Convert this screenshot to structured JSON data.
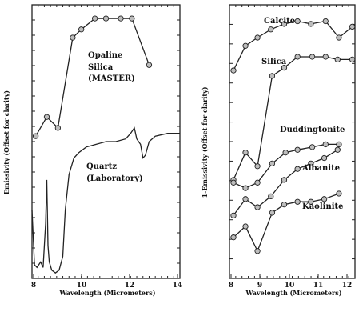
{
  "chart_data": [
    {
      "type": "line",
      "xlabel": "Wavelength (Micrometers)",
      "ylabel": "Emissivity (Offset for clarity)",
      "xlim": [
        8,
        14
      ],
      "xticks": [
        "8",
        "10",
        "12",
        "14"
      ],
      "ylim": [
        0,
        1
      ],
      "yticks_labeled": false,
      "grid": false,
      "series": [
        {
          "name": "Opaline Silica (MASTER)",
          "labels": [
            "Opaline",
            "Silica",
            "(MASTER)"
          ],
          "markers": true,
          "x": [
            8.15,
            8.6,
            9.05,
            9.65,
            10.0,
            10.55,
            11.0,
            11.6,
            12.05,
            12.75
          ],
          "y": [
            0.52,
            0.59,
            0.55,
            0.88,
            0.91,
            0.95,
            0.95,
            0.95,
            0.95,
            0.78
          ]
        },
        {
          "name": "Quartz (Laboratory)",
          "labels": [
            "Quartz",
            "(Laboratory)"
          ],
          "markers": false,
          "x": [
            8.0,
            8.1,
            8.2,
            8.35,
            8.45,
            8.55,
            8.6,
            8.65,
            8.7,
            8.8,
            8.95,
            9.1,
            9.25,
            9.35,
            9.5,
            9.7,
            9.9,
            10.2,
            10.6,
            11.0,
            11.4,
            11.8,
            12.0,
            12.15,
            12.25,
            12.4,
            12.5,
            12.6,
            12.75,
            13.0,
            13.5,
            14.0
          ],
          "y": [
            0.25,
            0.05,
            0.04,
            0.06,
            0.04,
            0.2,
            0.36,
            0.12,
            0.06,
            0.03,
            0.02,
            0.03,
            0.08,
            0.25,
            0.38,
            0.44,
            0.46,
            0.48,
            0.49,
            0.5,
            0.5,
            0.51,
            0.53,
            0.55,
            0.51,
            0.49,
            0.44,
            0.45,
            0.5,
            0.52,
            0.53,
            0.53
          ]
        }
      ]
    },
    {
      "type": "line",
      "xlabel": "Wavelength (Micrometers)",
      "ylabel": "1-Emissivity (Offset for clarity)",
      "xlim": [
        8,
        12.7
      ],
      "xticks": [
        "8",
        "9",
        "10",
        "11",
        "12"
      ],
      "ylim": [
        0,
        1
      ],
      "yticks_labeled": false,
      "grid": false,
      "series": [
        {
          "name": "Calcite",
          "markers": true,
          "x": [
            8.15,
            8.6,
            9.05,
            9.55,
            10.05,
            10.55,
            11.05,
            11.6,
            12.1,
            12.6
          ],
          "y": [
            0.76,
            0.85,
            0.88,
            0.91,
            0.93,
            0.94,
            0.93,
            0.94,
            0.88,
            0.92
          ]
        },
        {
          "name": "Silica",
          "markers": true,
          "x": [
            8.15,
            8.6,
            9.05,
            9.6,
            10.05,
            10.55,
            11.1,
            11.6,
            12.05,
            12.6
          ],
          "y": [
            0.36,
            0.46,
            0.41,
            0.74,
            0.77,
            0.81,
            0.81,
            0.81,
            0.8,
            0.8
          ]
        },
        {
          "name": "Duddingtonite",
          "markers": true,
          "x": [
            8.15,
            8.6,
            9.05,
            9.6,
            10.1,
            10.55,
            11.1,
            11.6,
            12.1
          ],
          "y": [
            0.35,
            0.33,
            0.35,
            0.42,
            0.46,
            0.47,
            0.48,
            0.49,
            0.49
          ]
        },
        {
          "name": "Albanite",
          "markers": true,
          "x": [
            8.15,
            8.6,
            9.05,
            9.55,
            10.05,
            10.55,
            11.05,
            11.55,
            12.05
          ],
          "y": [
            0.23,
            0.29,
            0.26,
            0.3,
            0.36,
            0.4,
            0.42,
            0.44,
            0.47
          ]
        },
        {
          "name": "Kaolinite",
          "markers": true,
          "x": [
            8.15,
            8.6,
            9.05,
            9.6,
            10.05,
            10.55,
            11.05,
            11.55,
            12.1
          ],
          "y": [
            0.15,
            0.19,
            0.1,
            0.24,
            0.27,
            0.28,
            0.28,
            0.29,
            0.31
          ]
        }
      ]
    }
  ]
}
